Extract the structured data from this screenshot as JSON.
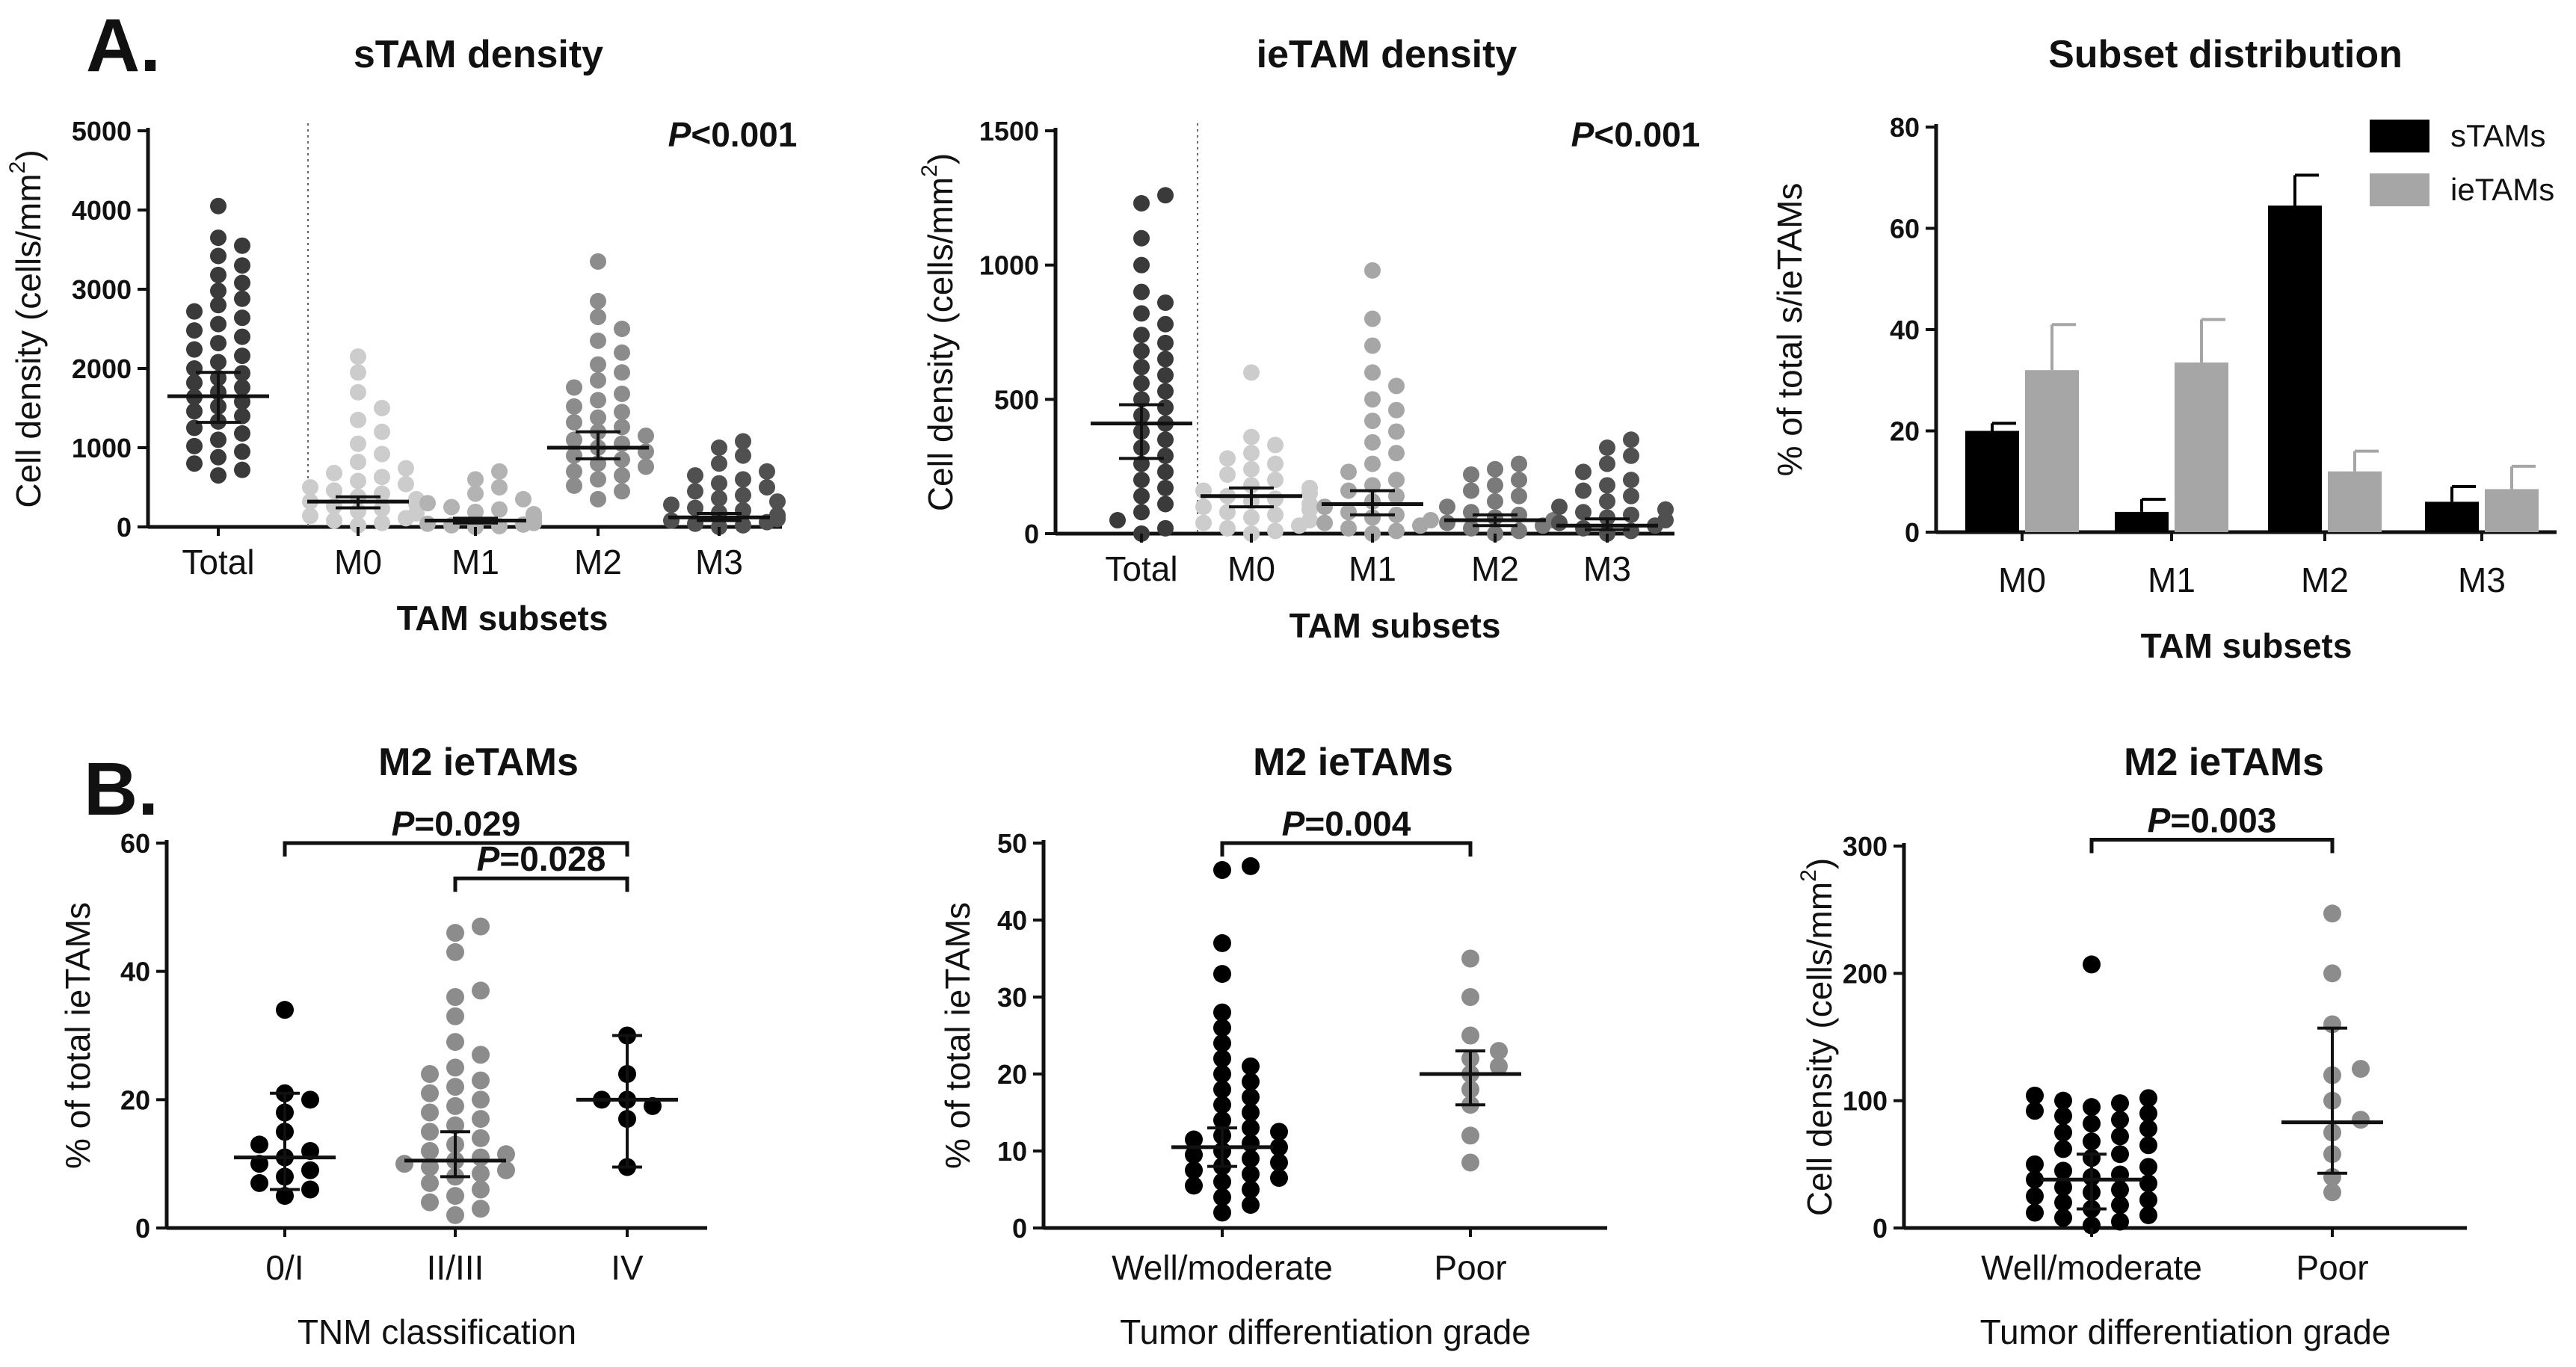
{
  "panel_labels": {
    "a": "A.",
    "b": "B."
  },
  "chart_data": [
    {
      "id": "stam",
      "type": "scatter",
      "title": "sTAM density",
      "ylabel": "Cell density (cells/mm²)",
      "ylabel_parts": [
        "Cell density (cells/mm",
        "2",
        ")"
      ],
      "xlabel": "TAM subsets",
      "ylim": [
        0,
        5000
      ],
      "yticks": [
        "0",
        "1000",
        "2000",
        "3000",
        "4000",
        "5000"
      ],
      "categories": [
        "Total",
        "M0",
        "M1",
        "M2",
        "M3"
      ],
      "annotation": {
        "p": "P",
        "rest": "<0.001"
      },
      "colors": [
        "#3a3a3a",
        "#cccccc",
        "#b3b3b3",
        "#8c8c8c",
        "#505050"
      ],
      "points": [
        [
          650,
          720,
          800,
          880,
          950,
          1020,
          1100,
          1180,
          1250,
          1330,
          1400,
          1460,
          1520,
          1580,
          1640,
          1700,
          1760,
          1820,
          1880,
          1940,
          2000,
          2080,
          2160,
          2240,
          2320,
          2400,
          2480,
          2560,
          2640,
          2720,
          2800,
          2880,
          2980,
          3080,
          3180,
          3300,
          3420,
          3550,
          3650,
          4050
        ],
        [
          20,
          50,
          80,
          110,
          140,
          170,
          200,
          230,
          260,
          290,
          320,
          350,
          380,
          420,
          460,
          500,
          540,
          580,
          630,
          680,
          740,
          820,
          920,
          1050,
          1200,
          1350,
          1500,
          1700,
          1950,
          2150
        ],
        [
          0,
          10,
          20,
          30,
          40,
          50,
          60,
          70,
          80,
          90,
          100,
          120,
          140,
          160,
          190,
          220,
          250,
          300,
          350,
          420,
          500,
          600,
          700
        ],
        [
          350,
          450,
          520,
          600,
          650,
          700,
          760,
          800,
          850,
          900,
          950,
          1000,
          1050,
          1100,
          1150,
          1200,
          1260,
          1320,
          1380,
          1450,
          1520,
          1600,
          1680,
          1760,
          1850,
          1950,
          2050,
          2200,
          2350,
          2500,
          2650,
          2850,
          3350
        ],
        [
          0,
          20,
          40,
          60,
          80,
          100,
          120,
          150,
          180,
          210,
          240,
          280,
          320,
          360,
          400,
          450,
          500,
          550,
          600,
          650,
          700,
          800,
          900,
          1000,
          1080
        ]
      ],
      "summary": [
        {
          "center": 1650,
          "low": 1320,
          "high": 1950
        },
        {
          "center": 320,
          "low": 240,
          "high": 380
        },
        {
          "center": 80,
          "low": 50,
          "high": 110
        },
        {
          "center": 1000,
          "low": 860,
          "high": 1200
        },
        {
          "center": 120,
          "low": 80,
          "high": 170
        }
      ]
    },
    {
      "id": "ietam",
      "type": "scatter",
      "title": "ieTAM density",
      "ylabel": "Cell density (cells/mm²)",
      "ylabel_parts": [
        "Cell density (cells/mm",
        "2",
        ")"
      ],
      "xlabel": "TAM subsets",
      "ylim": [
        0,
        1500
      ],
      "yticks": [
        "0",
        "500",
        "1000",
        "1500"
      ],
      "categories": [
        "Total",
        "M0",
        "M1",
        "M2",
        "M3"
      ],
      "annotation": {
        "p": "P",
        "rest": "<0.001"
      },
      "colors": [
        "#3a3a3a",
        "#cccccc",
        "#a6a6a6",
        "#7a7a7a",
        "#505050"
      ],
      "points": [
        [
          0,
          20,
          50,
          80,
          110,
          140,
          170,
          200,
          230,
          260,
          290,
          320,
          350,
          380,
          410,
          440,
          470,
          500,
          530,
          560,
          590,
          620,
          650,
          680,
          710,
          740,
          780,
          820,
          860,
          900,
          1000,
          1100,
          1230,
          1260
        ],
        [
          0,
          10,
          20,
          30,
          40,
          50,
          60,
          70,
          80,
          90,
          100,
          110,
          120,
          130,
          140,
          150,
          160,
          170,
          180,
          200,
          220,
          240,
          260,
          280,
          300,
          330,
          360,
          600
        ],
        [
          0,
          10,
          20,
          30,
          40,
          50,
          60,
          70,
          80,
          100,
          120,
          140,
          160,
          180,
          200,
          230,
          260,
          300,
          340,
          380,
          420,
          460,
          500,
          550,
          600,
          700,
          800,
          980
        ],
        [
          0,
          10,
          20,
          30,
          40,
          50,
          60,
          70,
          80,
          100,
          120,
          140,
          160,
          180,
          200,
          220,
          240,
          260
        ],
        [
          0,
          10,
          20,
          30,
          40,
          50,
          60,
          70,
          80,
          90,
          100,
          120,
          140,
          160,
          180,
          200,
          230,
          260,
          290,
          320,
          350
        ]
      ],
      "summary": [
        {
          "center": 410,
          "low": 280,
          "high": 480
        },
        {
          "center": 140,
          "low": 100,
          "high": 170
        },
        {
          "center": 110,
          "low": 70,
          "high": 160
        },
        {
          "center": 50,
          "low": 30,
          "high": 70
        },
        {
          "center": 30,
          "low": 15,
          "high": 55
        }
      ]
    },
    {
      "id": "subset",
      "type": "bar",
      "title": "Subset distribution",
      "ylabel": "% of total s/ieTAMs",
      "xlabel": "TAM subsets",
      "ylim": [
        0,
        80
      ],
      "yticks": [
        "0",
        "20",
        "40",
        "60",
        "80"
      ],
      "categories": [
        "M0",
        "M1",
        "M2",
        "M3"
      ],
      "series": [
        {
          "name": "sTAMs",
          "color": "#000000",
          "values": [
            20,
            4,
            64.5,
            6
          ],
          "errors": [
            1.5,
            2.5,
            6,
            3
          ]
        },
        {
          "name": "ieTAMs",
          "color": "#a6a6a6",
          "values": [
            32,
            33.5,
            12,
            8.5
          ],
          "errors": [
            9,
            8.5,
            4,
            4.5
          ]
        }
      ]
    },
    {
      "id": "tnm",
      "type": "scatter",
      "title": "M2 ieTAMs",
      "ylabel": "% of total ieTAMs",
      "xlabel": "TNM classification",
      "ylim": [
        0,
        60
      ],
      "yticks": [
        "0",
        "20",
        "40",
        "60"
      ],
      "categories": [
        "0/I",
        "II/III",
        "IV"
      ],
      "colors": [
        "#000000",
        "#8c8c8c",
        "#000000"
      ],
      "points": [
        [
          5,
          6,
          7,
          8,
          9,
          10,
          11,
          12,
          13,
          15,
          18,
          20,
          21,
          34
        ],
        [
          2,
          3,
          4,
          5,
          6,
          7,
          8,
          8.5,
          9,
          9.5,
          10,
          10.5,
          11,
          11.5,
          12,
          13,
          14,
          15,
          16,
          17,
          18,
          19,
          20,
          21,
          22,
          23,
          24,
          25,
          27,
          29,
          33,
          36,
          37,
          43,
          46,
          47
        ],
        [
          9.5,
          17,
          19,
          20,
          20,
          24,
          30
        ]
      ],
      "summary": [
        {
          "center": 11,
          "low": 6,
          "high": 21
        },
        {
          "center": 10.5,
          "low": 8,
          "high": 15
        },
        {
          "center": 20,
          "low": 9.5,
          "high": 30
        }
      ],
      "comparisons": [
        {
          "from": 0,
          "to": 2,
          "p": "P",
          "value": "=0.029",
          "level": 60
        },
        {
          "from": 1,
          "to": 2,
          "p": "P",
          "value": "=0.028",
          "level": 54.5
        }
      ]
    },
    {
      "id": "grade_pct",
      "type": "scatter",
      "title": "M2 ieTAMs",
      "ylabel": "% of total ieTAMs",
      "xlabel": "Tumor differentiation grade",
      "ylim": [
        0,
        50
      ],
      "yticks": [
        "0",
        "10",
        "20",
        "30",
        "40",
        "50"
      ],
      "categories": [
        "Well/moderate",
        "Poor"
      ],
      "colors": [
        "#000000",
        "#8c8c8c"
      ],
      "points": [
        [
          2,
          3,
          4,
          5,
          5.5,
          6,
          6.5,
          7,
          7.5,
          8,
          8.5,
          9,
          9.5,
          10,
          10.5,
          11,
          11.5,
          12,
          12.5,
          13,
          14,
          15,
          16,
          17,
          18,
          19,
          20,
          21,
          22,
          24,
          26,
          28,
          33,
          37,
          46.5,
          47
        ],
        [
          8.5,
          12,
          16,
          18,
          20,
          21,
          22,
          23,
          25,
          30,
          35
        ]
      ],
      "summary": [
        {
          "center": 10.5,
          "low": 8,
          "high": 13
        },
        {
          "center": 20,
          "low": 16,
          "high": 23
        }
      ],
      "comparisons": [
        {
          "from": 0,
          "to": 1,
          "p": "P",
          "value": "=0.004",
          "level": 50
        }
      ]
    },
    {
      "id": "grade_density",
      "type": "scatter",
      "title": "M2 ieTAMs",
      "ylabel": "Cell density (cells/mm²)",
      "ylabel_parts": [
        "Cell density (cells/mm",
        "2",
        ")"
      ],
      "xlabel": "Tumor differentiation grade",
      "ylim": [
        0,
        300
      ],
      "yticks": [
        "0",
        "100",
        "200",
        "300"
      ],
      "categories": [
        "Well/moderate",
        "Poor"
      ],
      "colors": [
        "#000000",
        "#8c8c8c"
      ],
      "points": [
        [
          2,
          5,
          8,
          10,
          12,
          15,
          18,
          20,
          22,
          25,
          28,
          30,
          32,
          35,
          38,
          40,
          42,
          45,
          48,
          50,
          55,
          58,
          62,
          65,
          68,
          72,
          75,
          78,
          82,
          85,
          88,
          90,
          92,
          95,
          98,
          100,
          102,
          104,
          207
        ],
        [
          28,
          40,
          58,
          75,
          85,
          100,
          120,
          125,
          160,
          200,
          247
        ]
      ],
      "summary": [
        {
          "center": 38,
          "low": 15,
          "high": 58
        },
        {
          "center": 83,
          "low": 43,
          "high": 157
        }
      ],
      "comparisons": [
        {
          "from": 0,
          "to": 1,
          "p": "P",
          "value": "=0.003",
          "level": 305
        }
      ]
    }
  ]
}
